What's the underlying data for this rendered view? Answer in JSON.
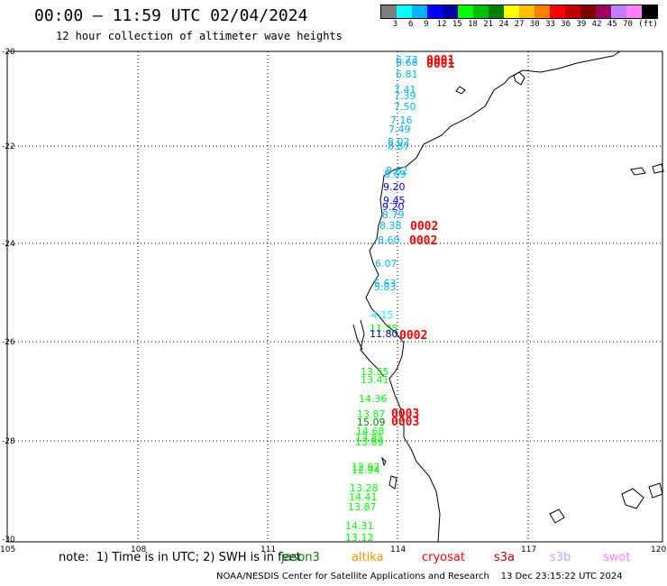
{
  "header": {
    "title": "00:00 – 11:59 UTC 02/04/2024",
    "subtitle": "12 hour collection of altimeter wave heights"
  },
  "colorbar": {
    "unit": "(ft)",
    "ticks": [
      "3",
      "6",
      "9",
      "12",
      "15",
      "18",
      "21",
      "24",
      "27",
      "30",
      "33",
      "36",
      "39",
      "42",
      "45",
      "70"
    ],
    "colors": [
      "#7f7f7f",
      "#00ffff",
      "#00b4ff",
      "#0000ff",
      "#0000aa",
      "#00ff00",
      "#00c000",
      "#008000",
      "#ffff00",
      "#ffc000",
      "#ff8000",
      "#ff0000",
      "#c00000",
      "#800000",
      "#a00060",
      "#c080ff",
      "#ff80ff",
      "#000000"
    ]
  },
  "map": {
    "lat_labels": [
      "-20",
      "-22",
      "-24",
      "-26",
      "-28",
      "-30"
    ],
    "lon_labels": [
      "105",
      "108",
      "111",
      "114",
      "117",
      "120"
    ],
    "readings": [
      {
        "text": "6.73",
        "color": "#00b4ff"
      },
      {
        "text": "6.68",
        "color": "#00b4ff"
      },
      {
        "text": "6.81",
        "color": "#00b4ff"
      },
      {
        "text": "7.41",
        "color": "#00b4ff"
      },
      {
        "text": "7.39",
        "color": "#00b4ff"
      },
      {
        "text": "7.50",
        "color": "#00b4ff"
      },
      {
        "text": "7.16",
        "color": "#00b4ff"
      },
      {
        "text": "7.49",
        "color": "#00b4ff"
      },
      {
        "text": "8.02",
        "color": "#00b4ff"
      },
      {
        "text": "8.87",
        "color": "#00b4ff"
      },
      {
        "text": "8.62",
        "color": "#00b4ff"
      },
      {
        "text": "8.69",
        "color": "#00b4ff"
      },
      {
        "text": "9.20",
        "color": "#0000ff"
      },
      {
        "text": "9.45",
        "color": "#0000ff"
      },
      {
        "text": "9.20",
        "color": "#0000ff"
      },
      {
        "text": "8.79",
        "color": "#00b4ff"
      },
      {
        "text": "8.38",
        "color": "#00b4ff"
      },
      {
        "text": "8.60",
        "color": "#00b4ff"
      },
      {
        "text": "6.07",
        "color": "#00b4ff"
      },
      {
        "text": "5.63",
        "color": "#00b4ff"
      },
      {
        "text": "5.83",
        "color": "#00b4ff"
      },
      {
        "text": "4.15",
        "color": "#00ffff"
      },
      {
        "text": "11.35",
        "color": "#00ff00"
      },
      {
        "text": "11.80",
        "color": "#0000aa"
      },
      {
        "text": "13.55",
        "color": "#00ff00"
      },
      {
        "text": "13.41",
        "color": "#00ff00"
      },
      {
        "text": "14.36",
        "color": "#00ff00"
      },
      {
        "text": "13.87",
        "color": "#00ff00"
      },
      {
        "text": "15.09",
        "color": "#008000"
      },
      {
        "text": "14.68",
        "color": "#00ff00"
      },
      {
        "text": "13.85",
        "color": "#00ff00"
      },
      {
        "text": "13.89",
        "color": "#00ff00"
      },
      {
        "text": "12.97",
        "color": "#00ff00"
      },
      {
        "text": "12.94",
        "color": "#00ff00"
      },
      {
        "text": "13.28",
        "color": "#00ff00"
      },
      {
        "text": "14.41",
        "color": "#00ff00"
      },
      {
        "text": "13.87",
        "color": "#00ff00"
      },
      {
        "text": "14.31",
        "color": "#00ff00"
      },
      {
        "text": "13.12",
        "color": "#00ff00"
      }
    ],
    "time_tags": [
      "0001",
      "0001",
      "0002",
      "0002",
      "0002",
      "0003",
      "0003"
    ]
  },
  "legend": {
    "note": "note:  1) Time is in UTC; 2) SWH is in feet",
    "satellites": [
      {
        "name": "jason3",
        "color": "#008000"
      },
      {
        "name": "altika",
        "color": "#ff9000"
      },
      {
        "name": "cryosat",
        "color": "#ff0000"
      },
      {
        "name": "s3a",
        "color": "#c00000"
      },
      {
        "name": "s3b",
        "color": "#c0a0ff"
      },
      {
        "name": "swot",
        "color": "#ff80ff"
      }
    ]
  },
  "footer": {
    "credit": "NOAA/NESDIS Center for Satellite Applications and Research",
    "timestamp": "13 Dec 23:15:22 UTC 2024"
  }
}
